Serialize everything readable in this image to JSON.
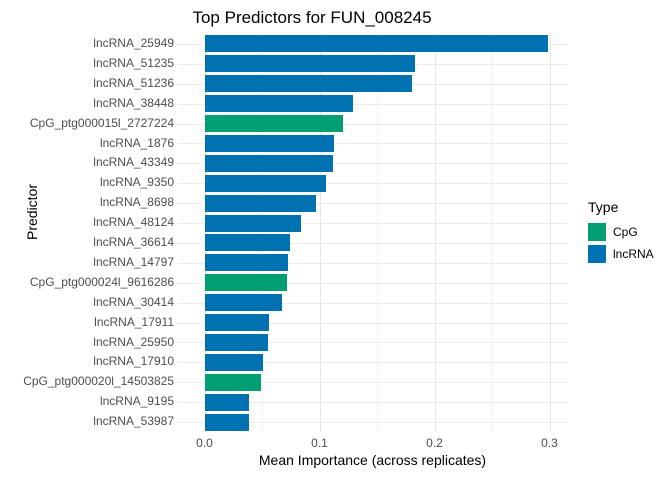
{
  "colors": {
    "cpg": "#009E73",
    "lncrna": "#0072B2",
    "grid_major": "#E6E6E6",
    "grid_minor": "#F2F2F2",
    "axis_text": "#4D4D4D",
    "title_text": "#000000",
    "background": "#FFFFFF"
  },
  "chart_data": {
    "type": "bar",
    "orientation": "horizontal",
    "title": "Top Predictors for FUN_008245",
    "xlabel": "Mean Importance (across replicates)",
    "ylabel": "Predictor",
    "xlim": [
      0,
      0.315
    ],
    "grid": true,
    "x_major_ticks": [
      0.0,
      0.1,
      0.2,
      0.3
    ],
    "x_tick_labels": [
      "0.0",
      "0.1",
      "0.2",
      "0.3"
    ],
    "x_minor_ticks": [
      0.05,
      0.15,
      0.25
    ],
    "legend": {
      "title": "Type",
      "position": "right",
      "entries": [
        {
          "label": "CpG",
          "color": "#009E73"
        },
        {
          "label": "lncRNA",
          "color": "#0072B2"
        }
      ]
    },
    "bars": [
      {
        "label": "lncRNA_25949",
        "value": 0.299,
        "type": "lncRNA"
      },
      {
        "label": "lncRNA_51235",
        "value": 0.183,
        "type": "lncRNA"
      },
      {
        "label": "lncRNA_51236",
        "value": 0.18,
        "type": "lncRNA"
      },
      {
        "label": "lncRNA_38448",
        "value": 0.129,
        "type": "lncRNA"
      },
      {
        "label": "CpG_ptg000015l_2727224",
        "value": 0.12,
        "type": "CpG"
      },
      {
        "label": "lncRNA_1876",
        "value": 0.113,
        "type": "lncRNA"
      },
      {
        "label": "lncRNA_43349",
        "value": 0.112,
        "type": "lncRNA"
      },
      {
        "label": "lncRNA_9350",
        "value": 0.106,
        "type": "lncRNA"
      },
      {
        "label": "lncRNA_8698",
        "value": 0.097,
        "type": "lncRNA"
      },
      {
        "label": "lncRNA_48124",
        "value": 0.084,
        "type": "lncRNA"
      },
      {
        "label": "lncRNA_36614",
        "value": 0.074,
        "type": "lncRNA"
      },
      {
        "label": "lncRNA_14797",
        "value": 0.073,
        "type": "lncRNA"
      },
      {
        "label": "CpG_ptg000024l_9616286",
        "value": 0.072,
        "type": "CpG"
      },
      {
        "label": "lncRNA_30414",
        "value": 0.067,
        "type": "lncRNA"
      },
      {
        "label": "lncRNA_17911",
        "value": 0.056,
        "type": "lncRNA"
      },
      {
        "label": "lncRNA_25950",
        "value": 0.055,
        "type": "lncRNA"
      },
      {
        "label": "lncRNA_17910",
        "value": 0.051,
        "type": "lncRNA"
      },
      {
        "label": "CpG_ptg000020l_14503825",
        "value": 0.049,
        "type": "CpG"
      },
      {
        "label": "lncRNA_9195",
        "value": 0.039,
        "type": "lncRNA"
      },
      {
        "label": "lncRNA_53987",
        "value": 0.039,
        "type": "lncRNA"
      }
    ]
  }
}
